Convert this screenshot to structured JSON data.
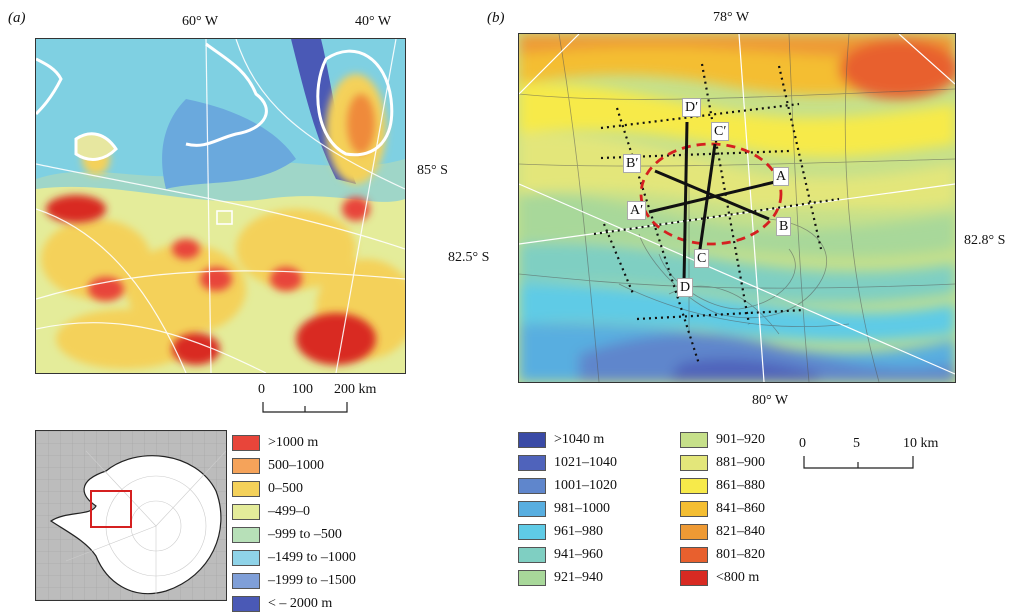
{
  "panel_a": {
    "label": "(a)",
    "lon_labels": [
      "60° W",
      "40° W"
    ],
    "lat_label": "85° S",
    "lat_label_left": "82.5° S",
    "scale": {
      "ticks": [
        "0",
        "100",
        "200 km"
      ]
    }
  },
  "panel_b": {
    "label": "(b)",
    "top_lon": "78° W",
    "bottom_lon": "80° W",
    "right_lat": "82.8° S",
    "points": [
      "A",
      "A′",
      "B",
      "B′",
      "C",
      "C′",
      "D",
      "D′"
    ],
    "scale": {
      "ticks": [
        "0",
        "5",
        "10 km"
      ]
    }
  },
  "legend_a": {
    "items": [
      {
        "label": ">1000 m",
        "color": "#e8453a"
      },
      {
        "label": "500–1000",
        "color": "#f5a35a"
      },
      {
        "label": "0–500",
        "color": "#f4d15a"
      },
      {
        "label": "–499–0",
        "color": "#e4ec9a"
      },
      {
        "label": "–999 to –500",
        "color": "#b7e0b8"
      },
      {
        "label": "–1499 to –1000",
        "color": "#8fd3e8"
      },
      {
        "label": "–1999 to –1500",
        "color": "#7f9fd8"
      },
      {
        "label": "< – 2000 m",
        "color": "#4a59b6"
      }
    ]
  },
  "legend_b": {
    "col1": [
      {
        "label": ">1040 m",
        "color": "#3a4aa6"
      },
      {
        "label": "1021–1040",
        "color": "#4f63bb"
      },
      {
        "label": "1001–1020",
        "color": "#5f86cc"
      },
      {
        "label": "981–1000",
        "color": "#58aee0"
      },
      {
        "label": "961–980",
        "color": "#5fcbe6"
      },
      {
        "label": "941–960",
        "color": "#7fcfc2"
      },
      {
        "label": "921–940",
        "color": "#a8d89a"
      }
    ],
    "col2": [
      {
        "label": "901–920",
        "color": "#c6e08a"
      },
      {
        "label": "881–900",
        "color": "#e3e67a"
      },
      {
        "label": "861–880",
        "color": "#f7ea4a"
      },
      {
        "label": "841–860",
        "color": "#f4be32"
      },
      {
        "label": "821–840",
        "color": "#ee9a34"
      },
      {
        "label": "801–820",
        "color": "#e8602e"
      },
      {
        "label": "<800 m",
        "color": "#d82a22"
      }
    ]
  }
}
